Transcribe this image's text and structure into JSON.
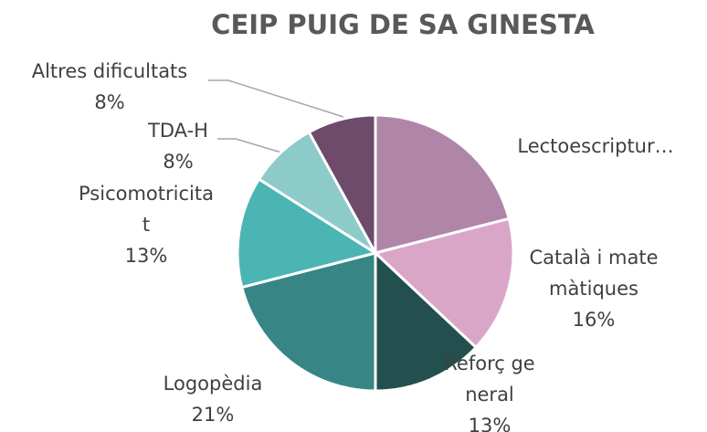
{
  "chart_data": {
    "type": "pie",
    "title": "CEIP PUIG DE SA GINESTA",
    "categories": [
      "Lectoescriptur…",
      "Català i matemàtiques",
      "Reforç general",
      "Logopèdia",
      "Psicomotricitat",
      "TDA-H",
      "Altres dificultats"
    ],
    "values": [
      21,
      16,
      13,
      21,
      13,
      8,
      8
    ],
    "value_labels": [
      null,
      "16%",
      "13%",
      "21%",
      "13%",
      "8%",
      "8%"
    ],
    "colors": [
      "#b086a8",
      "#d9a6c8",
      "#244f4f",
      "#378585",
      "#4bb5b3",
      "#8ccbc9",
      "#6e4a6b"
    ]
  }
}
